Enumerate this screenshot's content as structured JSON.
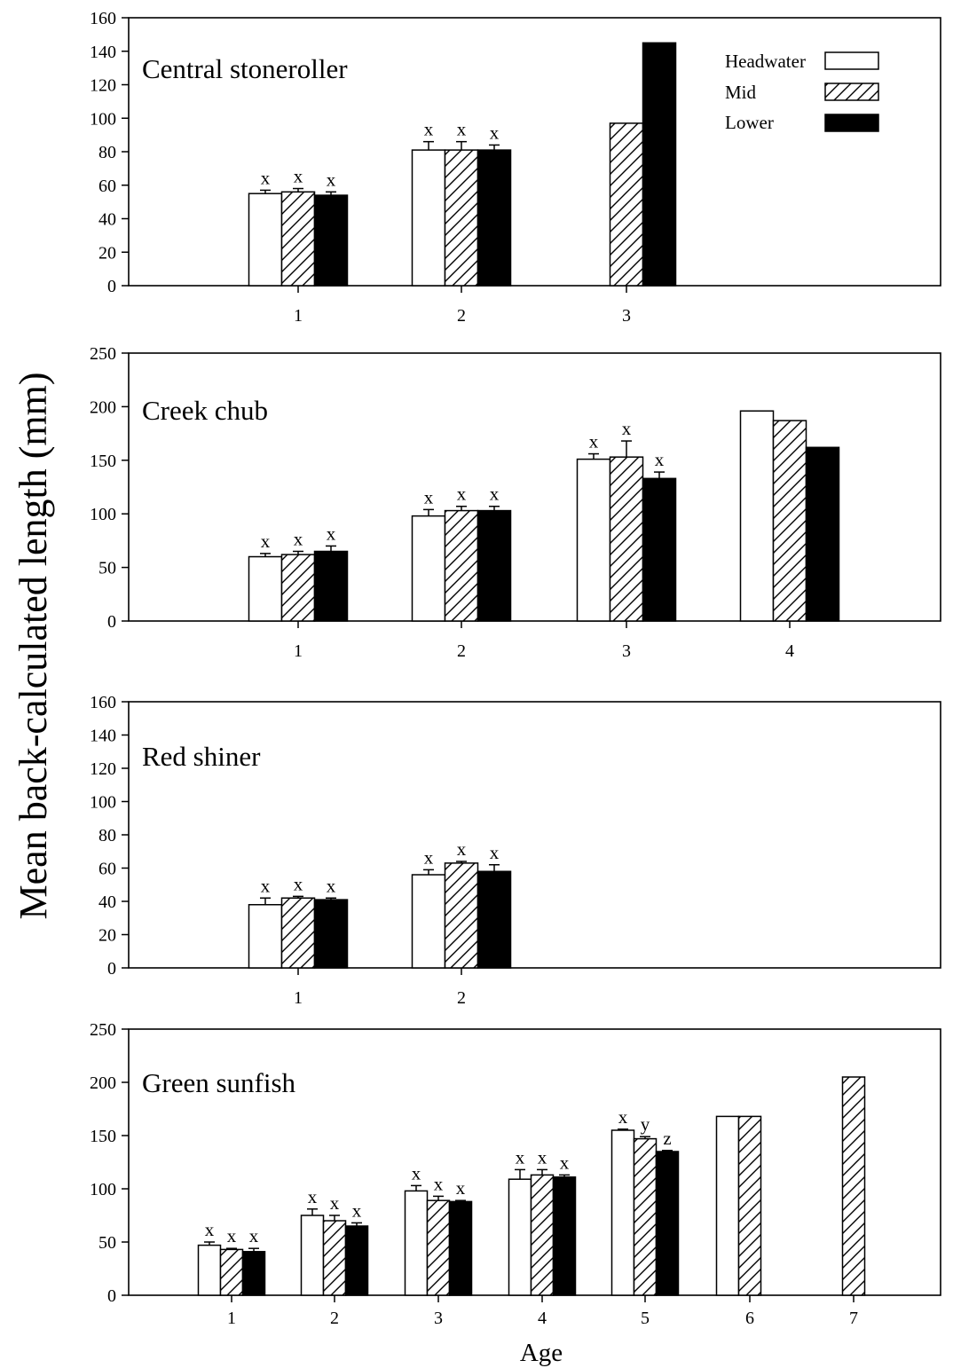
{
  "figure": {
    "ylabel": "Mean back-calculated length (mm)",
    "xlabel": "Age"
  },
  "legend": {
    "items": [
      {
        "label": "Headwater",
        "fill": "white"
      },
      {
        "label": "Mid",
        "fill": "hatch"
      },
      {
        "label": "Lower",
        "fill": "black"
      }
    ]
  },
  "colors": {
    "bar_stroke": "#000000",
    "lower_fill": "#000000",
    "headwater_fill": "#ffffff"
  },
  "chart_data": [
    {
      "type": "bar",
      "title": "Central stoneroller",
      "categories": [
        "1",
        "2",
        "3"
      ],
      "ylim": [
        0,
        160
      ],
      "yticks": [
        0,
        20,
        40,
        60,
        80,
        100,
        120,
        140,
        160
      ],
      "series": [
        {
          "name": "Headwater",
          "values": [
            55,
            81,
            null
          ],
          "errors": [
            2,
            5,
            null
          ],
          "labels": [
            "x",
            "x",
            ""
          ]
        },
        {
          "name": "Mid",
          "values": [
            56,
            81,
            97
          ],
          "errors": [
            2,
            5,
            null
          ],
          "labels": [
            "x",
            "x",
            ""
          ]
        },
        {
          "name": "Lower",
          "values": [
            54,
            81,
            145
          ],
          "errors": [
            2,
            3,
            null
          ],
          "labels": [
            "x",
            "x",
            ""
          ]
        }
      ]
    },
    {
      "type": "bar",
      "title": "Creek chub",
      "categories": [
        "1",
        "2",
        "3",
        "4"
      ],
      "ylim": [
        0,
        250
      ],
      "yticks": [
        0,
        50,
        100,
        150,
        200,
        250
      ],
      "series": [
        {
          "name": "Headwater",
          "values": [
            60,
            98,
            151,
            196
          ],
          "errors": [
            3,
            6,
            5,
            null
          ],
          "labels": [
            "x",
            "x",
            "x",
            ""
          ]
        },
        {
          "name": "Mid",
          "values": [
            62,
            103,
            153,
            187
          ],
          "errors": [
            3,
            4,
            15,
            null
          ],
          "labels": [
            "x",
            "x",
            "x",
            ""
          ]
        },
        {
          "name": "Lower",
          "values": [
            65,
            103,
            133,
            162
          ],
          "errors": [
            5,
            4,
            6,
            null
          ],
          "labels": [
            "x",
            "x",
            "x",
            ""
          ]
        }
      ]
    },
    {
      "type": "bar",
      "title": "Red shiner",
      "categories": [
        "1",
        "2"
      ],
      "ylim": [
        0,
        160
      ],
      "yticks": [
        0,
        20,
        40,
        60,
        80,
        100,
        120,
        140,
        160
      ],
      "series": [
        {
          "name": "Headwater",
          "values": [
            38,
            56
          ],
          "errors": [
            4,
            3
          ],
          "labels": [
            "x",
            "x"
          ]
        },
        {
          "name": "Mid",
          "values": [
            42,
            63
          ],
          "errors": [
            1,
            1
          ],
          "labels": [
            "x",
            "x"
          ]
        },
        {
          "name": "Lower",
          "values": [
            41,
            58
          ],
          "errors": [
            1,
            4
          ],
          "labels": [
            "x",
            "x"
          ]
        }
      ]
    },
    {
      "type": "bar",
      "title": "Green sunfish",
      "categories": [
        "1",
        "2",
        "3",
        "4",
        "5",
        "6",
        "7"
      ],
      "ylim": [
        0,
        250
      ],
      "yticks": [
        0,
        50,
        100,
        150,
        200,
        250
      ],
      "series": [
        {
          "name": "Headwater",
          "values": [
            47,
            75,
            98,
            109,
            155,
            168,
            null
          ],
          "errors": [
            3,
            6,
            5,
            9,
            1,
            null,
            null
          ],
          "labels": [
            "x",
            "x",
            "x",
            "x",
            "x",
            "",
            ""
          ]
        },
        {
          "name": "Mid",
          "values": [
            43,
            70,
            89,
            113,
            147,
            168,
            205
          ],
          "errors": [
            1,
            5,
            4,
            5,
            2,
            null,
            null
          ],
          "labels": [
            "x",
            "x",
            "x",
            "x",
            "y",
            "",
            ""
          ]
        },
        {
          "name": "Lower",
          "values": [
            41,
            65,
            88,
            111,
            135,
            null,
            null
          ],
          "errors": [
            3,
            3,
            1,
            2,
            1,
            null,
            null
          ],
          "labels": [
            "x",
            "x",
            "x",
            "x",
            "z",
            "",
            ""
          ]
        }
      ]
    }
  ]
}
